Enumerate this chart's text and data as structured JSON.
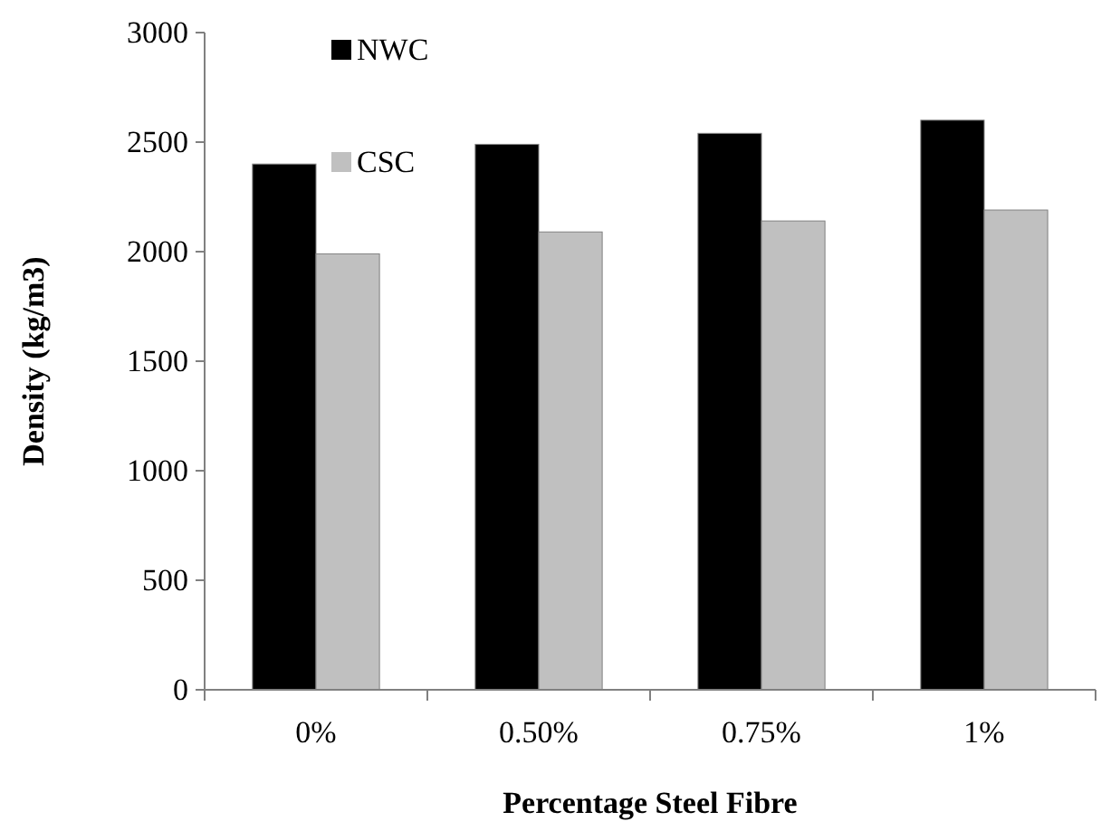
{
  "chart_data": {
    "type": "bar",
    "xlabel": "Percentage Steel Fibre",
    "ylabel": "Density (kg/m3)",
    "categories": [
      "0%",
      "0.50%",
      "0.75%",
      "1%"
    ],
    "series": [
      {
        "name": "NWC",
        "color": "#000000",
        "values": [
          2400,
          2490,
          2540,
          2600
        ]
      },
      {
        "name": "CSC",
        "color": "#c0c0c0",
        "values": [
          1990,
          2090,
          2140,
          2190
        ]
      }
    ],
    "ylim": [
      0,
      3000
    ],
    "yticks": [
      0,
      500,
      1000,
      1500,
      2000,
      2500,
      3000
    ],
    "legend": "top left"
  }
}
